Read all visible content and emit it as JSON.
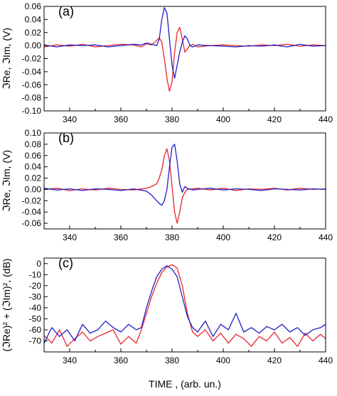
{
  "colors": {
    "series_re": "#e8262c",
    "series_im": "#1f1fc9",
    "axis": "#000000"
  },
  "chart_data": [
    {
      "type": "line",
      "panel": "(a)",
      "ylabel": "ℑRe, ℑIm, (V)",
      "xlim": [
        330,
        440
      ],
      "ylim": [
        -0.1,
        0.06
      ],
      "xticks": [
        340,
        360,
        380,
        400,
        420,
        440
      ],
      "yticks": [
        -0.1,
        -0.08,
        -0.06,
        -0.04,
        -0.02,
        0.0,
        0.02,
        0.04,
        0.06
      ],
      "ytick_labels": [
        "-0.10",
        "-0.08",
        "-0.06",
        "-0.04",
        "-0.02",
        "0.00",
        "0.02",
        "0.04",
        "0.06"
      ],
      "x": [
        330,
        335,
        340,
        345,
        350,
        355,
        360,
        365,
        368,
        370,
        372,
        374,
        375,
        376,
        377,
        378,
        379,
        380,
        381,
        382,
        383,
        384,
        385,
        386,
        387,
        388,
        390,
        395,
        400,
        405,
        410,
        415,
        420,
        425,
        430,
        435,
        440
      ],
      "series": [
        {
          "color_key": "series_re",
          "values": [
            -0.002,
            0.001,
            -0.001,
            0.002,
            -0.002,
            0.0,
            0.002,
            0.001,
            -0.002,
            0.003,
            0.001,
            0.008,
            0.012,
            0.005,
            -0.02,
            -0.05,
            -0.07,
            -0.055,
            -0.01,
            0.02,
            0.028,
            0.01,
            -0.01,
            -0.005,
            0.0,
            0.002,
            -0.002,
            0.0,
            0.001,
            0.0,
            -0.001,
            0.001,
            0.0,
            0.002,
            -0.001,
            0.001,
            0.0
          ]
        },
        {
          "color_key": "series_im",
          "values": [
            0.001,
            -0.002,
            0.001,
            0.0,
            0.001,
            -0.002,
            0.0,
            0.002,
            0.001,
            0.004,
            0.002,
            0.0,
            0.01,
            0.04,
            0.058,
            0.05,
            0.01,
            -0.03,
            -0.05,
            -0.03,
            -0.01,
            0.005,
            0.015,
            0.01,
            0.0,
            -0.002,
            0.001,
            0.0,
            -0.001,
            -0.002,
            0.0,
            -0.001,
            0.001,
            -0.002,
            0.002,
            -0.001,
            0.0
          ]
        }
      ]
    },
    {
      "type": "line",
      "panel": "(b)",
      "ylabel": "ℑRe, ℑIm, (V)",
      "xlim": [
        330,
        440
      ],
      "ylim": [
        -0.07,
        0.1
      ],
      "xticks": [
        340,
        360,
        380,
        400,
        420,
        440
      ],
      "yticks": [
        -0.06,
        -0.04,
        -0.02,
        0.0,
        0.02,
        0.04,
        0.06,
        0.08,
        0.1
      ],
      "ytick_labels": [
        "-0.06",
        "-0.04",
        "-0.02",
        "0.00",
        "0.02",
        "0.04",
        "0.06",
        "0.08",
        "0.10"
      ],
      "x": [
        330,
        335,
        340,
        345,
        350,
        355,
        360,
        365,
        370,
        372,
        374,
        375,
        376,
        377,
        378,
        379,
        380,
        381,
        382,
        383,
        384,
        385,
        386,
        388,
        390,
        395,
        400,
        405,
        410,
        415,
        420,
        425,
        430,
        435,
        440
      ],
      "series": [
        {
          "color_key": "series_re",
          "values": [
            0.0,
            0.002,
            -0.002,
            0.001,
            -0.001,
            0.002,
            0.0,
            -0.001,
            0.002,
            0.005,
            0.01,
            0.02,
            0.035,
            0.06,
            0.072,
            0.05,
            0.005,
            -0.04,
            -0.06,
            -0.04,
            -0.015,
            -0.005,
            0.0,
            0.001,
            0.002,
            -0.001,
            0.002,
            -0.002,
            0.001,
            0.0,
            0.002,
            -0.001,
            0.002,
            0.0,
            0.001
          ]
        },
        {
          "color_key": "series_im",
          "values": [
            0.002,
            -0.001,
            0.001,
            -0.002,
            0.001,
            0.0,
            -0.002,
            0.001,
            -0.003,
            -0.01,
            -0.02,
            -0.025,
            -0.028,
            -0.02,
            0.0,
            0.04,
            0.075,
            0.08,
            0.05,
            0.01,
            -0.005,
            0.005,
            0.002,
            -0.001,
            0.0,
            0.002,
            -0.001,
            0.001,
            0.0,
            -0.002,
            0.001,
            0.0,
            -0.001,
            0.001,
            0.0
          ]
        }
      ]
    },
    {
      "type": "line",
      "panel": "(c)",
      "ylabel": "(ℑRe)² + (ℑIm)², (dB)",
      "xlabel": "TIME , (arb. un.)",
      "xlim": [
        330,
        440
      ],
      "ylim": [
        -80,
        5
      ],
      "xticks": [
        340,
        360,
        380,
        400,
        420,
        440
      ],
      "yticks": [
        -70,
        -60,
        -50,
        -40,
        -30,
        -20,
        -10,
        0
      ],
      "ytick_labels": [
        "-70",
        "-60",
        "-50",
        "-40",
        "-30",
        "-20",
        "-10",
        "0"
      ],
      "x": [
        330,
        333,
        336,
        339,
        342,
        345,
        348,
        351,
        354,
        357,
        360,
        363,
        366,
        368,
        370,
        372,
        374,
        376,
        378,
        380,
        382,
        384,
        386,
        388,
        390,
        393,
        396,
        399,
        402,
        405,
        408,
        411,
        414,
        417,
        420,
        423,
        426,
        429,
        432,
        435,
        438,
        440
      ],
      "series": [
        {
          "color_key": "series_re",
          "values": [
            -65,
            -72,
            -60,
            -75,
            -68,
            -62,
            -70,
            -66,
            -63,
            -60,
            -73,
            -66,
            -72,
            -60,
            -45,
            -30,
            -18,
            -8,
            -3,
            -1,
            -4,
            -20,
            -45,
            -62,
            -66,
            -60,
            -70,
            -63,
            -72,
            -64,
            -68,
            -75,
            -66,
            -70,
            -62,
            -72,
            -67,
            -75,
            -63,
            -70,
            -64,
            -68
          ]
        },
        {
          "color_key": "series_im",
          "values": [
            -72,
            -58,
            -66,
            -60,
            -70,
            -55,
            -63,
            -60,
            -52,
            -58,
            -62,
            -55,
            -60,
            -58,
            -40,
            -25,
            -12,
            -5,
            -2,
            -5,
            -12,
            -30,
            -48,
            -58,
            -62,
            -52,
            -66,
            -55,
            -60,
            -45,
            -62,
            -58,
            -63,
            -57,
            -60,
            -55,
            -62,
            -58,
            -65,
            -60,
            -58,
            -55
          ]
        }
      ]
    }
  ]
}
